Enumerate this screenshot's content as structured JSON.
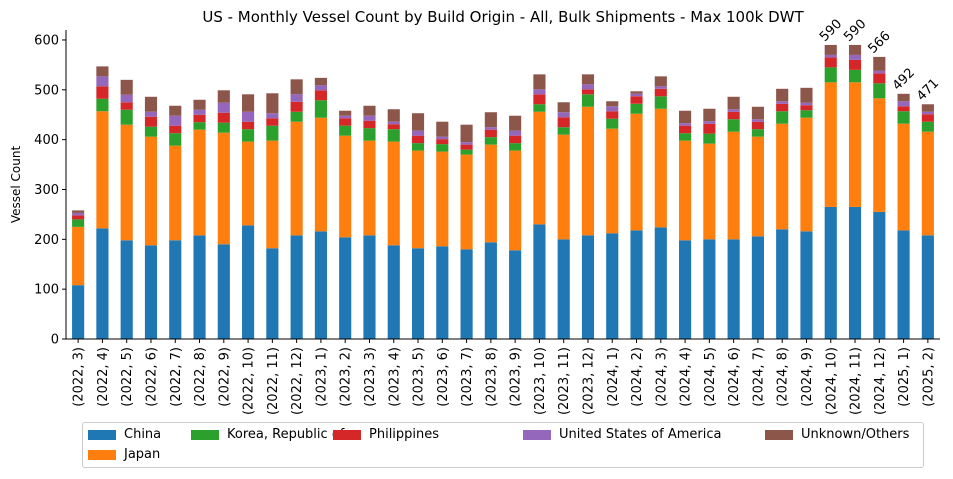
{
  "chart_data": {
    "type": "bar",
    "stacked": true,
    "title": "US - Monthly Vessel Count by Build Origin - All, Bulk Shipments - Max 100k DWT",
    "xlabel": "",
    "ylabel": "Vessel Count",
    "ylim": [
      0,
      620
    ],
    "yticks": [
      "0",
      "100",
      "200",
      "300",
      "400",
      "500",
      "600"
    ],
    "categories": [
      "(2022, 3)",
      "(2022, 4)",
      "(2022, 5)",
      "(2022, 6)",
      "(2022, 7)",
      "(2022, 8)",
      "(2022, 9)",
      "(2022, 10)",
      "(2022, 11)",
      "(2022, 12)",
      "(2023, 1)",
      "(2023, 2)",
      "(2023, 3)",
      "(2023, 4)",
      "(2023, 5)",
      "(2023, 6)",
      "(2023, 7)",
      "(2023, 8)",
      "(2023, 9)",
      "(2023, 10)",
      "(2023, 11)",
      "(2023, 12)",
      "(2024, 1)",
      "(2024, 2)",
      "(2024, 3)",
      "(2024, 4)",
      "(2024, 5)",
      "(2024, 6)",
      "(2024, 7)",
      "(2024, 8)",
      "(2024, 9)",
      "(2024, 10)",
      "(2024, 11)",
      "(2024, 12)",
      "(2025, 1)",
      "(2025, 2)"
    ],
    "series": [
      {
        "name": "China",
        "color": "#1f77b4",
        "values": [
          108,
          222,
          198,
          188,
          198,
          208,
          190,
          228,
          182,
          208,
          216,
          204,
          208,
          188,
          182,
          186,
          180,
          194,
          178,
          230,
          200,
          208,
          212,
          218,
          224,
          198,
          200,
          200,
          206,
          220,
          216,
          265,
          265,
          255,
          218,
          208
        ]
      },
      {
        "name": "Japan",
        "color": "#ff7f0e",
        "values": [
          117,
          235,
          232,
          218,
          190,
          212,
          224,
          168,
          216,
          228,
          228,
          204,
          190,
          208,
          196,
          190,
          190,
          196,
          200,
          226,
          210,
          258,
          210,
          234,
          238,
          200,
          192,
          216,
          200,
          212,
          228,
          250,
          250,
          228,
          214,
          208
        ]
      },
      {
        "name": "Korea, Republic of",
        "color": "#2ca02c",
        "values": [
          15,
          25,
          30,
          20,
          25,
          15,
          20,
          25,
          30,
          20,
          35,
          20,
          25,
          25,
          15,
          15,
          10,
          15,
          15,
          15,
          15,
          25,
          20,
          20,
          25,
          15,
          20,
          25,
          15,
          25,
          15,
          30,
          25,
          30,
          25,
          20
        ]
      },
      {
        "name": "Philippines",
        "color": "#d62728",
        "values": [
          8,
          25,
          15,
          20,
          15,
          15,
          20,
          15,
          15,
          20,
          20,
          15,
          15,
          10,
          15,
          10,
          10,
          15,
          15,
          20,
          20,
          10,
          15,
          15,
          15,
          15,
          20,
          15,
          15,
          15,
          10,
          20,
          20,
          20,
          10,
          15
        ]
      },
      {
        "name": "United States of America",
        "color": "#9467bd",
        "values": [
          5,
          20,
          15,
          10,
          20,
          10,
          20,
          20,
          10,
          15,
          10,
          5,
          10,
          5,
          10,
          5,
          5,
          5,
          10,
          10,
          10,
          10,
          10,
          5,
          5,
          5,
          5,
          5,
          5,
          5,
          5,
          5,
          10,
          5,
          10,
          5
        ]
      },
      {
        "name": "Unknown/Others",
        "color": "#8c564b",
        "values": [
          5,
          20,
          30,
          30,
          20,
          20,
          25,
          35,
          40,
          30,
          15,
          10,
          20,
          25,
          35,
          30,
          35,
          30,
          30,
          30,
          20,
          20,
          10,
          5,
          20,
          25,
          25,
          25,
          25,
          25,
          30,
          20,
          20,
          28,
          15,
          15
        ]
      }
    ],
    "annotations": [
      {
        "category": "(2024, 10)",
        "text": "590"
      },
      {
        "category": "(2024, 11)",
        "text": "590"
      },
      {
        "category": "(2024, 12)",
        "text": "566"
      },
      {
        "category": "(2025, 1)",
        "text": "492"
      },
      {
        "category": "(2025, 2)",
        "text": "471"
      }
    ],
    "legend": {
      "placement": "bottom",
      "columns": 5
    }
  }
}
